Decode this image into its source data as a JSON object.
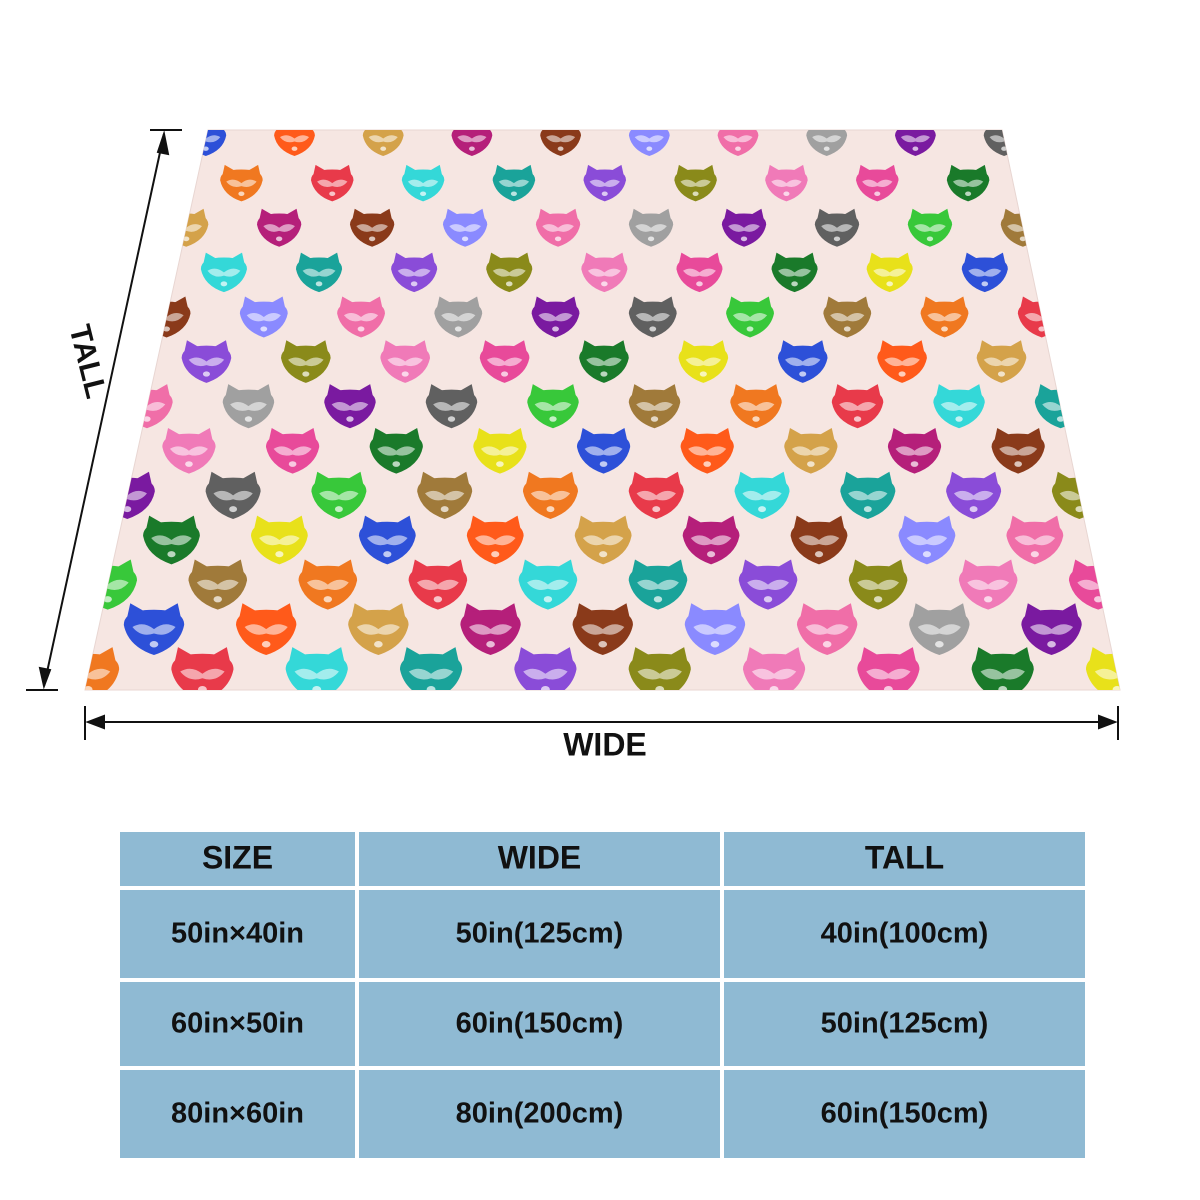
{
  "labels": {
    "tall": "TALL",
    "wide": "WIDE"
  },
  "table": {
    "header": [
      "SIZE",
      "WIDE",
      "TALL"
    ],
    "rows": [
      [
        "50in×40in",
        "50in(125cm)",
        "40in(100cm)"
      ],
      [
        "60in×50in",
        "60in(150cm)",
        "50in(125cm)"
      ],
      [
        "80in×60in",
        "80in(200cm)",
        "60in(150cm)"
      ]
    ]
  }
}
